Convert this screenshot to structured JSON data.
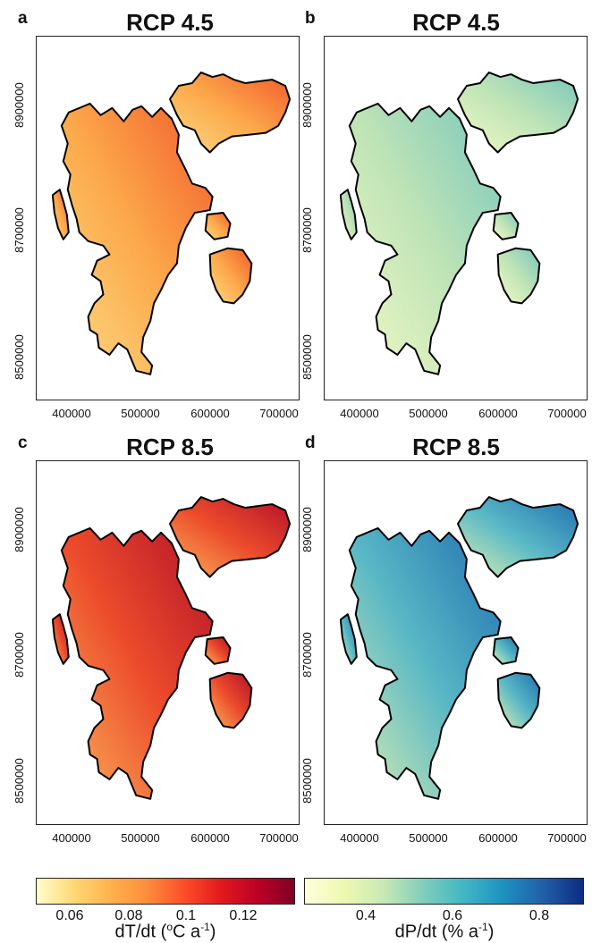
{
  "panels": [
    {
      "letter": "a",
      "title": "RCP 4.5",
      "variable": "temperature",
      "scenario": "RCP 4.5"
    },
    {
      "letter": "b",
      "title": "RCP 4.5",
      "variable": "precipitation",
      "scenario": "RCP 4.5"
    },
    {
      "letter": "c",
      "title": "RCP 8.5",
      "variable": "temperature",
      "scenario": "RCP 8.5"
    },
    {
      "letter": "d",
      "title": "RCP 8.5",
      "variable": "precipitation",
      "scenario": "RCP 8.5"
    }
  ],
  "axes": {
    "x_ticks": [
      "400000",
      "500000",
      "600000",
      "700000"
    ],
    "y_ticks": [
      "8500000",
      "8700000",
      "8900000"
    ]
  },
  "colorbars": {
    "temperature": {
      "ticks": [
        "0.06",
        "0.08",
        "0.1",
        "0.12"
      ],
      "label_main": "dT/dt (",
      "label_o": "o",
      "label_mid": "C a",
      "label_sup": "-1",
      "label_end": ")",
      "colors": [
        "#ffffcc",
        "#fed976",
        "#feb24c",
        "#fd8d3c",
        "#fc4e2a",
        "#e31a1c",
        "#bd0026",
        "#800026"
      ]
    },
    "precipitation": {
      "ticks": [
        "0.4",
        "0.6",
        "0.8"
      ],
      "label_main": "dP/dt (% a",
      "label_sup": "-1",
      "label_end": ")",
      "colors": [
        "#ffffd9",
        "#edf8b1",
        "#c7e9b4",
        "#7fcdbb",
        "#41b6c4",
        "#1d91c0",
        "#225ea8",
        "#0c2c84"
      ]
    }
  },
  "map_colors": {
    "temp45": {
      "low": "#fddc86",
      "mid": "#fca84a",
      "high": "#f25a2c"
    },
    "temp85": {
      "low": "#fbb35a",
      "mid": "#ec4b2b",
      "high": "#b3102a"
    },
    "prec45": {
      "low": "#f4f9c6",
      "mid": "#bfe4b6",
      "high": "#79c6bd"
    },
    "prec85": {
      "low": "#dcf0b3",
      "mid": "#58b7c5",
      "high": "#1f6fb0"
    }
  }
}
